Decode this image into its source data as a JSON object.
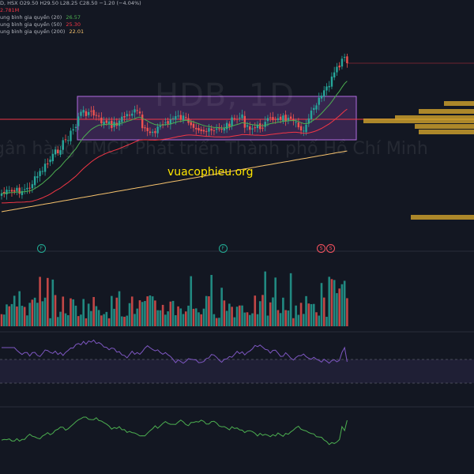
{
  "legend": {
    "ohlc": "D, HSX  O29.50  H29.50  L28.25  C28.50  −1.20 (−4.04%)",
    "volume": "2.781M",
    "ma": [
      {
        "label": "ung bình gia quyền (20)",
        "value": "26.57",
        "color": "#4caf50"
      },
      {
        "label": "ung bình gia quyền (50)",
        "value": "25.30",
        "color": "#f23645"
      },
      {
        "label": "ung bình gia quyền (200)",
        "value": "22.01",
        "color": "#f5c16c"
      }
    ]
  },
  "watermark": {
    "ticker": "HDB, 1D",
    "name": "gân hàng TMCP Phát triển Thành phố Hồ Chí Minh"
  },
  "site": "vuacophieu.org",
  "events": [
    "F",
    "F",
    "S",
    "S"
  ],
  "colors": {
    "up": "#26a69a",
    "down": "#ef5350",
    "box_fill": "#7b3fa0",
    "box_border": "#b06ce0",
    "support_line": "#f23645",
    "rsi_line": "#7e57c2",
    "osc_line": "#4caf50",
    "profile": "#c89b2c"
  },
  "chart_data": {
    "type": "candlestick",
    "indicators": [
      "volume",
      "rsi",
      "oscillator"
    ],
    "last_candle": {
      "open": 29.5,
      "high": 29.5,
      "low": 28.25,
      "close": 28.5
    },
    "moving_averages": {
      "ma20": 26.57,
      "ma50": 25.3,
      "ma200": 22.01
    }
  }
}
